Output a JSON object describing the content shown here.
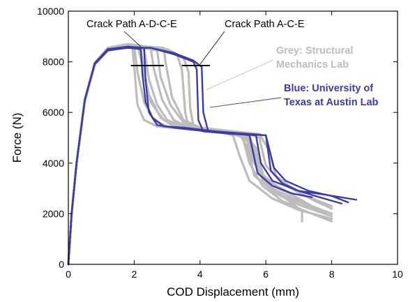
{
  "chart_data": {
    "type": "line",
    "xlabel": "COD Displacement (mm)",
    "ylabel": "Force (N)",
    "xlim": [
      0,
      10
    ],
    "ylim": [
      0,
      10000
    ],
    "x_ticks": [
      "0",
      "2",
      "4",
      "6",
      "8",
      "10"
    ],
    "y_ticks": [
      "0",
      "2000",
      "4000",
      "6000",
      "8000",
      "10000"
    ],
    "grid": false,
    "legend_placement": "right",
    "colors": {
      "grey": "#bcbcbc",
      "blue": "#3c3ca8"
    },
    "annotations": [
      {
        "text": "Crack Path A-D-C-E",
        "points_to_x": 2.2,
        "points_to_y": 8600
      },
      {
        "text": "Crack Path A-C-E",
        "points_to_x": 4.0,
        "points_to_y": 7900
      }
    ],
    "legend_labels": [
      {
        "line1": "Grey: Structural",
        "line2": "Mechanics Lab",
        "color": "#bcbcbc",
        "points_to_x": 4.2,
        "points_to_y": 6900
      },
      {
        "line1": "Blue: University of",
        "line2": "Texas at Austin Lab",
        "color": "#3c3ca8",
        "points_to_x": 4.3,
        "points_to_y": 6200
      }
    ],
    "markers": [
      {
        "x1": 1.9,
        "x2": 2.9,
        "y": 7850
      },
      {
        "x1": 3.45,
        "x2": 4.3,
        "y": 7850
      }
    ],
    "series": [
      {
        "group": "grey",
        "points": [
          [
            0,
            0
          ],
          [
            0.1,
            2000
          ],
          [
            0.25,
            4000
          ],
          [
            0.5,
            6500
          ],
          [
            0.8,
            7900
          ],
          [
            1.2,
            8450
          ],
          [
            1.8,
            8600
          ],
          [
            1.95,
            8550
          ],
          [
            2.0,
            7800
          ],
          [
            2.1,
            6300
          ],
          [
            2.3,
            5700
          ],
          [
            2.7,
            5450
          ],
          [
            3.5,
            5350
          ],
          [
            4.5,
            5250
          ],
          [
            5.0,
            5100
          ],
          [
            5.2,
            4300
          ],
          [
            5.5,
            3300
          ],
          [
            6.2,
            2600
          ],
          [
            7.0,
            2150
          ],
          [
            8.0,
            1800
          ]
        ]
      },
      {
        "group": "grey",
        "points": [
          [
            0,
            0
          ],
          [
            0.1,
            2000
          ],
          [
            0.25,
            4000
          ],
          [
            0.5,
            6500
          ],
          [
            0.8,
            7900
          ],
          [
            1.2,
            8500
          ],
          [
            1.8,
            8650
          ],
          [
            2.0,
            8600
          ],
          [
            2.1,
            7600
          ],
          [
            2.3,
            6400
          ],
          [
            2.6,
            5700
          ],
          [
            3.0,
            5450
          ],
          [
            4.0,
            5300
          ],
          [
            5.0,
            5150
          ],
          [
            5.3,
            5000
          ],
          [
            5.5,
            4000
          ],
          [
            5.9,
            3100
          ],
          [
            6.5,
            2500
          ],
          [
            7.2,
            2100
          ],
          [
            8.0,
            1700
          ]
        ]
      },
      {
        "group": "grey",
        "points": [
          [
            0,
            0
          ],
          [
            0.1,
            2000
          ],
          [
            0.25,
            4000
          ],
          [
            0.5,
            6500
          ],
          [
            0.8,
            7950
          ],
          [
            1.2,
            8550
          ],
          [
            1.8,
            8700
          ],
          [
            2.1,
            8650
          ],
          [
            2.25,
            7900
          ],
          [
            2.45,
            6700
          ],
          [
            2.8,
            5800
          ],
          [
            3.2,
            5450
          ],
          [
            4.0,
            5300
          ],
          [
            5.0,
            5150
          ],
          [
            5.4,
            5050
          ],
          [
            5.6,
            4100
          ],
          [
            6.0,
            3200
          ],
          [
            6.5,
            2700
          ],
          [
            7.3,
            2300
          ],
          [
            8.0,
            2000
          ]
        ]
      },
      {
        "group": "grey",
        "points": [
          [
            0,
            0
          ],
          [
            0.1,
            2000
          ],
          [
            0.25,
            4000
          ],
          [
            0.5,
            6400
          ],
          [
            0.8,
            7900
          ],
          [
            1.2,
            8450
          ],
          [
            1.8,
            8600
          ],
          [
            2.3,
            8500
          ],
          [
            2.45,
            7300
          ],
          [
            2.7,
            6300
          ],
          [
            3.0,
            5700
          ],
          [
            3.5,
            5450
          ],
          [
            4.5,
            5250
          ],
          [
            5.2,
            5100
          ],
          [
            5.5,
            4800
          ],
          [
            5.75,
            3700
          ],
          [
            6.2,
            3000
          ],
          [
            7.0,
            2500
          ],
          [
            8.0,
            2000
          ]
        ]
      },
      {
        "group": "grey",
        "points": [
          [
            0,
            0
          ],
          [
            0.1,
            2000
          ],
          [
            0.25,
            4000
          ],
          [
            0.5,
            6500
          ],
          [
            0.8,
            7900
          ],
          [
            1.2,
            8500
          ],
          [
            1.8,
            8650
          ],
          [
            2.5,
            8550
          ],
          [
            2.6,
            7700
          ],
          [
            2.85,
            6500
          ],
          [
            3.2,
            5700
          ],
          [
            3.6,
            5450
          ],
          [
            4.5,
            5300
          ],
          [
            5.5,
            5150
          ],
          [
            5.8,
            5000
          ],
          [
            6.0,
            3900
          ],
          [
            6.5,
            3200
          ],
          [
            7.2,
            2700
          ],
          [
            8.0,
            2300
          ]
        ]
      },
      {
        "group": "grey",
        "points": [
          [
            0,
            0
          ],
          [
            0.1,
            2000
          ],
          [
            0.25,
            4000
          ],
          [
            0.5,
            6500
          ],
          [
            0.8,
            7950
          ],
          [
            1.2,
            8500
          ],
          [
            1.8,
            8650
          ],
          [
            2.7,
            8450
          ],
          [
            2.8,
            7400
          ],
          [
            3.1,
            6300
          ],
          [
            3.5,
            5600
          ],
          [
            4.0,
            5400
          ],
          [
            5.0,
            5250
          ],
          [
            5.8,
            5150
          ],
          [
            6.1,
            4500
          ],
          [
            6.3,
            3500
          ],
          [
            6.9,
            2900
          ],
          [
            7.5,
            2500
          ],
          [
            8.0,
            2200
          ]
        ]
      },
      {
        "group": "grey",
        "points": [
          [
            0,
            0
          ],
          [
            0.1,
            2000
          ],
          [
            0.25,
            4000
          ],
          [
            0.5,
            6500
          ],
          [
            0.8,
            7950
          ],
          [
            1.2,
            8550
          ],
          [
            1.8,
            8700
          ],
          [
            3.0,
            8500
          ],
          [
            3.3,
            8300
          ],
          [
            3.45,
            7700
          ],
          [
            3.55,
            6000
          ],
          [
            3.65,
            5450
          ],
          [
            4.5,
            5300
          ],
          [
            5.3,
            5150
          ],
          [
            5.6,
            4700
          ],
          [
            5.85,
            3600
          ],
          [
            6.4,
            3000
          ],
          [
            7.0,
            2600
          ],
          [
            7.4,
            2300
          ]
        ]
      },
      {
        "group": "grey",
        "points": [
          [
            0,
            0
          ],
          [
            0.1,
            2000
          ],
          [
            0.25,
            4000
          ],
          [
            0.5,
            6500
          ],
          [
            0.8,
            7900
          ],
          [
            1.2,
            8450
          ],
          [
            1.8,
            8600
          ],
          [
            3.0,
            8450
          ],
          [
            3.5,
            8150
          ],
          [
            3.65,
            7600
          ],
          [
            3.7,
            6200
          ],
          [
            3.8,
            5450
          ],
          [
            4.6,
            5250
          ],
          [
            5.4,
            5100
          ],
          [
            5.7,
            4600
          ],
          [
            5.95,
            3400
          ],
          [
            6.6,
            2900
          ],
          [
            7.2,
            2400
          ],
          [
            7.8,
            2000
          ]
        ]
      },
      {
        "group": "grey",
        "points": [
          [
            0,
            0
          ],
          [
            0.1,
            2000
          ],
          [
            0.25,
            4000
          ],
          [
            0.5,
            6500
          ],
          [
            0.8,
            7950
          ],
          [
            1.2,
            8500
          ],
          [
            1.8,
            8650
          ],
          [
            2.9,
            8550
          ],
          [
            2.95,
            8000
          ],
          [
            3.15,
            6600
          ],
          [
            3.5,
            5700
          ],
          [
            4.0,
            5400
          ],
          [
            5.0,
            5200
          ],
          [
            5.5,
            5100
          ],
          [
            5.7,
            4300
          ],
          [
            5.9,
            3300
          ],
          [
            6.5,
            2700
          ],
          [
            7.1,
            2100
          ],
          [
            7.1,
            1700
          ]
        ]
      },
      {
        "group": "grey",
        "points": [
          [
            0,
            0
          ],
          [
            0.1,
            2000
          ],
          [
            0.25,
            4000
          ],
          [
            0.5,
            6450
          ],
          [
            0.8,
            7900
          ],
          [
            1.2,
            8450
          ],
          [
            1.8,
            8600
          ],
          [
            2.2,
            8550
          ],
          [
            2.3,
            7500
          ],
          [
            2.5,
            6400
          ],
          [
            2.9,
            5700
          ],
          [
            3.4,
            5450
          ],
          [
            4.4,
            5300
          ],
          [
            5.2,
            5150
          ],
          [
            5.45,
            4600
          ],
          [
            5.65,
            3500
          ],
          [
            6.3,
            2800
          ],
          [
            7.0,
            2350
          ],
          [
            8.0,
            1900
          ]
        ]
      },
      {
        "group": "blue",
        "points": [
          [
            0,
            0
          ],
          [
            0.1,
            2000
          ],
          [
            0.25,
            4000
          ],
          [
            0.5,
            6500
          ],
          [
            0.8,
            7900
          ],
          [
            1.2,
            8450
          ],
          [
            1.8,
            8550
          ],
          [
            2.2,
            8500
          ],
          [
            2.25,
            7500
          ],
          [
            2.35,
            6400
          ],
          [
            2.55,
            5800
          ],
          [
            2.9,
            5450
          ],
          [
            3.5,
            5400
          ],
          [
            4.5,
            5250
          ],
          [
            5.5,
            5150
          ],
          [
            6.0,
            5100
          ],
          [
            6.15,
            3700
          ],
          [
            6.5,
            3200
          ],
          [
            7.0,
            2900
          ],
          [
            7.5,
            2700
          ],
          [
            8.3,
            2400
          ]
        ]
      },
      {
        "group": "blue",
        "points": [
          [
            0,
            0
          ],
          [
            0.1,
            2000
          ],
          [
            0.25,
            4000
          ],
          [
            0.5,
            6500
          ],
          [
            0.8,
            7950
          ],
          [
            1.2,
            8500
          ],
          [
            1.8,
            8600
          ],
          [
            2.3,
            8550
          ],
          [
            2.35,
            7200
          ],
          [
            2.45,
            6000
          ],
          [
            2.7,
            5500
          ],
          [
            3.2,
            5400
          ],
          [
            4.2,
            5250
          ],
          [
            5.2,
            5150
          ],
          [
            5.5,
            5100
          ],
          [
            5.75,
            3600
          ],
          [
            6.2,
            3100
          ],
          [
            6.8,
            2800
          ],
          [
            7.4,
            2650
          ]
        ]
      },
      {
        "group": "blue",
        "points": [
          [
            0,
            0
          ],
          [
            0.1,
            2000
          ],
          [
            0.25,
            4000
          ],
          [
            0.5,
            6500
          ],
          [
            0.8,
            7900
          ],
          [
            1.2,
            8500
          ],
          [
            1.8,
            8550
          ],
          [
            2.5,
            8550
          ],
          [
            3.2,
            8300
          ],
          [
            3.8,
            8000
          ],
          [
            3.9,
            7700
          ],
          [
            3.95,
            5700
          ],
          [
            4.1,
            5250
          ],
          [
            5.0,
            5150
          ],
          [
            5.7,
            5100
          ],
          [
            5.85,
            4000
          ],
          [
            6.2,
            3300
          ],
          [
            7.0,
            2900
          ],
          [
            7.8,
            2750
          ],
          [
            8.75,
            2550
          ]
        ]
      },
      {
        "group": "blue",
        "points": [
          [
            0,
            0
          ],
          [
            0.1,
            2000
          ],
          [
            0.25,
            4000
          ],
          [
            0.5,
            6500
          ],
          [
            0.8,
            7900
          ],
          [
            1.2,
            8450
          ],
          [
            1.8,
            8550
          ],
          [
            2.5,
            8550
          ],
          [
            3.2,
            8350
          ],
          [
            3.8,
            8050
          ],
          [
            4.05,
            7800
          ],
          [
            4.1,
            6000
          ],
          [
            4.25,
            5250
          ],
          [
            5.0,
            5150
          ],
          [
            6.0,
            5100
          ],
          [
            6.25,
            3800
          ],
          [
            6.6,
            3300
          ],
          [
            7.3,
            2900
          ],
          [
            8.0,
            2700
          ],
          [
            8.5,
            2450
          ]
        ]
      }
    ]
  }
}
